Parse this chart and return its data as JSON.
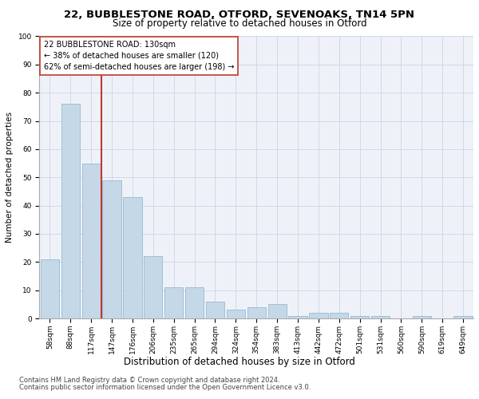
{
  "title1": "22, BUBBLESTONE ROAD, OTFORD, SEVENOAKS, TN14 5PN",
  "title2": "Size of property relative to detached houses in Otford",
  "xlabel": "Distribution of detached houses by size in Otford",
  "ylabel": "Number of detached properties",
  "categories": [
    "58sqm",
    "88sqm",
    "117sqm",
    "147sqm",
    "176sqm",
    "206sqm",
    "235sqm",
    "265sqm",
    "294sqm",
    "324sqm",
    "354sqm",
    "383sqm",
    "413sqm",
    "442sqm",
    "472sqm",
    "501sqm",
    "531sqm",
    "560sqm",
    "590sqm",
    "619sqm",
    "649sqm"
  ],
  "values": [
    21,
    76,
    55,
    49,
    43,
    22,
    11,
    11,
    6,
    3,
    4,
    5,
    1,
    2,
    2,
    1,
    1,
    0,
    1,
    0,
    1
  ],
  "bar_color": "#c5d8e8",
  "bar_edge_color": "#8ab0cb",
  "grid_color": "#d0d8e8",
  "bg_color": "#eef2f8",
  "vline_x_idx": 2,
  "vline_color": "#c0392b",
  "annotation_title": "22 BUBBLESTONE ROAD: 130sqm",
  "annotation_line1": "← 38% of detached houses are smaller (120)",
  "annotation_line2": "62% of semi-detached houses are larger (198) →",
  "annotation_box_color": "#ffffff",
  "annotation_box_edge": "#c0392b",
  "ylim": [
    0,
    100
  ],
  "yticks": [
    0,
    10,
    20,
    30,
    40,
    50,
    60,
    70,
    80,
    90,
    100
  ],
  "footnote1": "Contains HM Land Registry data © Crown copyright and database right 2024.",
  "footnote2": "Contains public sector information licensed under the Open Government Licence v3.0.",
  "title1_fontsize": 9.5,
  "title2_fontsize": 8.5,
  "xlabel_fontsize": 8.5,
  "ylabel_fontsize": 7.5,
  "tick_fontsize": 6.5,
  "annotation_fontsize": 7,
  "footnote_fontsize": 6
}
